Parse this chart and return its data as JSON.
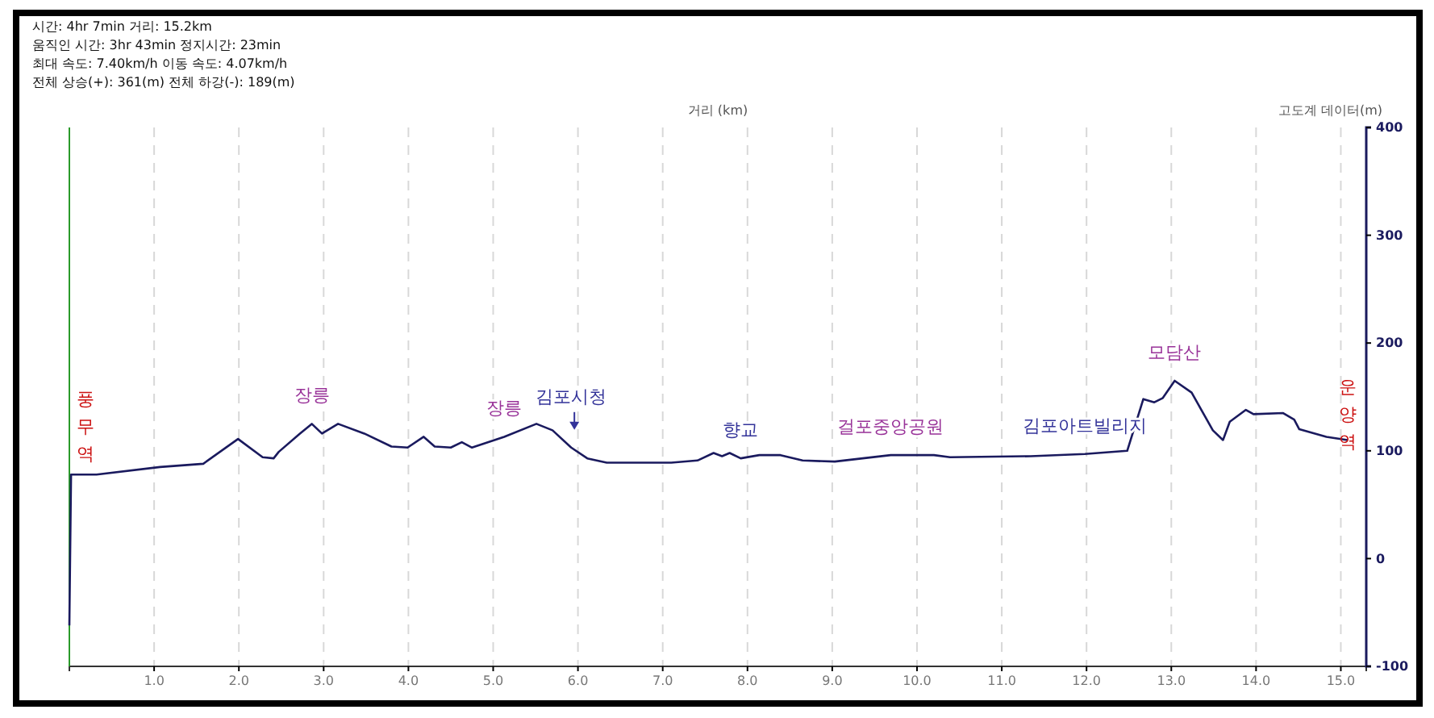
{
  "chart_data": {
    "type": "line",
    "xlabel": "거리 (km)",
    "ylabel": "고도계 데이터(m)",
    "x": [
      0,
      0.02,
      0.32,
      1.07,
      1.58,
      1.99,
      2.28,
      2.41,
      2.47,
      2.72,
      2.86,
      2.98,
      3.17,
      3.48,
      3.8,
      3.99,
      4.18,
      4.31,
      4.5,
      4.63,
      4.75,
      5.13,
      5.51,
      5.7,
      5.92,
      6.11,
      6.34,
      7.1,
      7.41,
      7.6,
      7.7,
      7.79,
      7.92,
      8.14,
      8.39,
      8.65,
      9.03,
      9.69,
      10.2,
      10.39,
      11.34,
      11.98,
      12.48,
      12.67,
      12.8,
      12.9,
      13.04,
      13.24,
      13.49,
      13.61,
      13.69,
      13.88,
      13.97,
      14.32,
      14.45,
      14.51,
      14.83,
      15.08
    ],
    "series": [
      {
        "color": "#1a1a5e",
        "values": [
          -62,
          78,
          78,
          85,
          88,
          111,
          94,
          93,
          99,
          116,
          125,
          116,
          125,
          116,
          104,
          103,
          113,
          104,
          103,
          108,
          103,
          113,
          125,
          119,
          103,
          93,
          89,
          89,
          91,
          98,
          95,
          98,
          93,
          96,
          96,
          91,
          90,
          96,
          96,
          94,
          95,
          97,
          100,
          148,
          145,
          149,
          165,
          154,
          119,
          110,
          127,
          138,
          134,
          135,
          129,
          120,
          113,
          110
        ]
      }
    ],
    "xlim": [
      0,
      15.3
    ],
    "ylim": [
      -100,
      400
    ],
    "xticks": [
      {
        "value": 1,
        "label": "1.0"
      },
      {
        "value": 2,
        "label": "2.0"
      },
      {
        "value": 3,
        "label": "3.0"
      },
      {
        "value": 4,
        "label": "4.0"
      },
      {
        "value": 5,
        "label": "5.0"
      },
      {
        "value": 6,
        "label": "6.0"
      },
      {
        "value": 7,
        "label": "7.0"
      },
      {
        "value": 8,
        "label": "8.0"
      },
      {
        "value": 9,
        "label": "9.0"
      },
      {
        "value": 10,
        "label": "10.0"
      },
      {
        "value": 11,
        "label": "11.0"
      },
      {
        "value": 12,
        "label": "12.0"
      },
      {
        "value": 13,
        "label": "13.0"
      },
      {
        "value": 14,
        "label": "14.0"
      },
      {
        "value": 15,
        "label": "15.0"
      }
    ],
    "yticks": [
      -100,
      0,
      100,
      200,
      300,
      400
    ],
    "grid": "x",
    "marker": "none",
    "line_style": "solid",
    "annotations": [
      "시간: 4hr 7min  거리: 15.2km",
      "움직인 시간: 3hr 43min  정지시간: 23min",
      "최대 속도: 7.40km/h  이동 속도: 4.07km/h",
      "전체 상승(+): 361(m)  전체 하강(-): 189(m)",
      {
        "text": "풍무역",
        "x": 0.02,
        "y": 78
      },
      {
        "text": "장릉",
        "x": 2.86,
        "y": 125
      },
      {
        "text": "장릉",
        "x": 5.13,
        "y": 113
      },
      {
        "text": "김포시청",
        "x": 5.92,
        "y": 103
      },
      {
        "text": "향교",
        "x": 7.92,
        "y": 93
      },
      {
        "text": "걸포중앙공원",
        "x": 9.69,
        "y": 96
      },
      {
        "text": "김포아트빌리지",
        "x": 11.98,
        "y": 97
      },
      {
        "text": "모담산",
        "x": 13.04,
        "y": 165
      },
      {
        "text": "운양역",
        "x": 15.08,
        "y": 110
      }
    ]
  }
}
